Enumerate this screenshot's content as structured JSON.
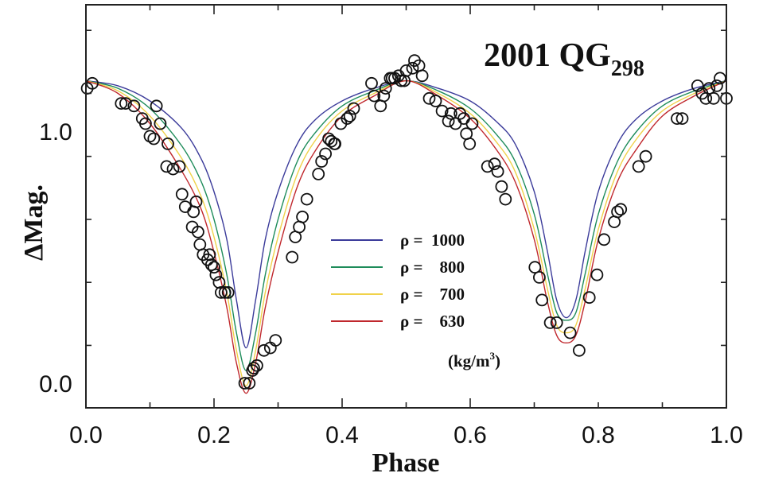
{
  "chart_data": {
    "type": "line",
    "title": "2001 QG",
    "title_subscript": "298",
    "xlabel": "Phase",
    "ylabel": "ΔMag.",
    "xlim": [
      0.0,
      1.0
    ],
    "ylim": [
      -0.1,
      1.5
    ],
    "y_inverted": false,
    "grid": false,
    "x_ticks": [
      {
        "value": 0.0,
        "label": "0.0"
      },
      {
        "value": 0.2,
        "label": "0.2"
      },
      {
        "value": 0.4,
        "label": "0.4"
      },
      {
        "value": 0.6,
        "label": "0.6"
      },
      {
        "value": 0.8,
        "label": "0.8"
      },
      {
        "value": 1.0,
        "label": "1.0"
      }
    ],
    "y_ticks": [
      {
        "value": 0.0,
        "label": "0.0"
      },
      {
        "value": 0.5,
        "label": ""
      },
      {
        "value": 1.0,
        "label": "1.0"
      }
    ],
    "legend": {
      "position": "center",
      "unit": "(kg/m",
      "unit_superscript": "3",
      "unit_close": ")",
      "entries": [
        {
          "label": "ρ =  1000",
          "color": "#3b3b9a"
        },
        {
          "label": "ρ =    800",
          "color": "#1e8c5a"
        },
        {
          "label": "ρ =    700",
          "color": "#f0d24a"
        },
        {
          "label": "ρ =    630",
          "color": "#c0282d"
        }
      ]
    },
    "series": [
      {
        "name": "ρ = 1000",
        "color": "#3b3b9a",
        "x": [
          0.0,
          0.05,
          0.1,
          0.15,
          0.18,
          0.2,
          0.22,
          0.235,
          0.25,
          0.265,
          0.28,
          0.3,
          0.33,
          0.36,
          0.4,
          0.45,
          0.5,
          0.55,
          0.6,
          0.64,
          0.67,
          0.7,
          0.72,
          0.735,
          0.75,
          0.765,
          0.78,
          0.8,
          0.83,
          0.86,
          0.9,
          0.95,
          1.0
        ],
        "y": [
          1.2,
          1.18,
          1.12,
          1.01,
          0.89,
          0.76,
          0.57,
          0.33,
          0.14,
          0.33,
          0.57,
          0.76,
          0.95,
          1.05,
          1.12,
          1.17,
          1.2,
          1.17,
          1.12,
          1.04,
          0.95,
          0.76,
          0.53,
          0.33,
          0.26,
          0.33,
          0.53,
          0.76,
          0.95,
          1.05,
          1.12,
          1.17,
          1.2
        ]
      },
      {
        "name": "ρ = 800",
        "color": "#1e8c5a",
        "x": [
          0.0,
          0.05,
          0.1,
          0.15,
          0.18,
          0.2,
          0.22,
          0.235,
          0.25,
          0.265,
          0.28,
          0.3,
          0.33,
          0.36,
          0.4,
          0.45,
          0.5,
          0.55,
          0.6,
          0.64,
          0.67,
          0.7,
          0.72,
          0.735,
          0.75,
          0.765,
          0.78,
          0.8,
          0.83,
          0.86,
          0.9,
          0.95,
          1.0
        ],
        "y": [
          1.2,
          1.17,
          1.09,
          0.94,
          0.8,
          0.65,
          0.43,
          0.2,
          0.05,
          0.2,
          0.43,
          0.65,
          0.88,
          1.0,
          1.1,
          1.16,
          1.2,
          1.16,
          1.09,
          0.99,
          0.88,
          0.67,
          0.44,
          0.28,
          0.25,
          0.28,
          0.44,
          0.67,
          0.88,
          1.0,
          1.1,
          1.16,
          1.2
        ]
      },
      {
        "name": "ρ = 700",
        "color": "#f0d24a",
        "x": [
          0.0,
          0.05,
          0.1,
          0.15,
          0.18,
          0.2,
          0.22,
          0.235,
          0.25,
          0.265,
          0.28,
          0.3,
          0.33,
          0.36,
          0.4,
          0.45,
          0.5,
          0.55,
          0.6,
          0.64,
          0.67,
          0.7,
          0.72,
          0.735,
          0.75,
          0.765,
          0.78,
          0.8,
          0.83,
          0.86,
          0.9,
          0.95,
          1.0
        ],
        "y": [
          1.2,
          1.16,
          1.06,
          0.89,
          0.74,
          0.58,
          0.36,
          0.13,
          -0.01,
          0.13,
          0.36,
          0.58,
          0.83,
          0.97,
          1.08,
          1.15,
          1.2,
          1.15,
          1.07,
          0.96,
          0.84,
          0.61,
          0.38,
          0.23,
          0.2,
          0.23,
          0.38,
          0.61,
          0.84,
          0.97,
          1.08,
          1.15,
          1.2
        ]
      },
      {
        "name": "ρ = 630",
        "color": "#c0282d",
        "x": [
          0.0,
          0.05,
          0.1,
          0.15,
          0.18,
          0.2,
          0.22,
          0.235,
          0.25,
          0.265,
          0.28,
          0.3,
          0.33,
          0.36,
          0.4,
          0.45,
          0.5,
          0.55,
          0.6,
          0.64,
          0.67,
          0.7,
          0.72,
          0.735,
          0.75,
          0.765,
          0.78,
          0.8,
          0.83,
          0.86,
          0.9,
          0.95,
          1.0
        ],
        "y": [
          1.2,
          1.15,
          1.03,
          0.84,
          0.69,
          0.52,
          0.3,
          0.08,
          -0.04,
          0.08,
          0.3,
          0.52,
          0.78,
          0.93,
          1.06,
          1.14,
          1.2,
          1.14,
          1.05,
          0.93,
          0.8,
          0.57,
          0.33,
          0.19,
          0.16,
          0.19,
          0.33,
          0.57,
          0.8,
          0.93,
          1.06,
          1.14,
          1.2
        ]
      }
    ],
    "observations": {
      "name": "",
      "marker": "open-circle",
      "x": [
        0.002,
        0.01,
        0.055,
        0.062,
        0.075,
        0.088,
        0.093,
        0.1,
        0.106,
        0.11,
        0.116,
        0.126,
        0.128,
        0.136,
        0.146,
        0.15,
        0.155,
        0.166,
        0.168,
        0.172,
        0.175,
        0.178,
        0.183,
        0.19,
        0.193,
        0.196,
        0.2,
        0.203,
        0.208,
        0.211,
        0.217,
        0.222,
        0.248,
        0.255,
        0.26,
        0.262,
        0.267,
        0.278,
        0.288,
        0.296,
        0.322,
        0.327,
        0.333,
        0.338,
        0.345,
        0.363,
        0.368,
        0.374,
        0.379,
        0.383,
        0.388,
        0.389,
        0.398,
        0.408,
        0.412,
        0.418,
        0.446,
        0.45,
        0.46,
        0.465,
        0.468,
        0.475,
        0.478,
        0.482,
        0.488,
        0.492,
        0.497,
        0.5,
        0.51,
        0.513,
        0.52,
        0.525,
        0.536,
        0.546,
        0.556,
        0.566,
        0.57,
        0.577,
        0.584,
        0.59,
        0.594,
        0.599,
        0.603,
        0.627,
        0.638,
        0.643,
        0.649,
        0.655,
        0.701,
        0.708,
        0.712,
        0.725,
        0.735,
        0.756,
        0.77,
        0.786,
        0.798,
        0.809,
        0.825,
        0.83,
        0.835,
        0.863,
        0.874,
        0.923,
        0.931,
        0.955,
        0.962,
        0.968,
        0.973,
        0.98,
        0.985,
        0.99,
        1.0
      ],
      "y": [
        1.17,
        1.19,
        1.11,
        1.11,
        1.1,
        1.05,
        1.03,
        0.98,
        0.97,
        1.1,
        1.03,
        0.86,
        0.95,
        0.85,
        0.86,
        0.75,
        0.7,
        0.62,
        0.68,
        0.72,
        0.6,
        0.55,
        0.51,
        0.49,
        0.51,
        0.47,
        0.46,
        0.43,
        0.4,
        0.36,
        0.36,
        0.36,
        0.0,
        0.0,
        0.05,
        0.06,
        0.07,
        0.13,
        0.14,
        0.17,
        0.5,
        0.58,
        0.62,
        0.66,
        0.73,
        0.83,
        0.88,
        0.91,
        0.97,
        0.96,
        0.95,
        0.95,
        1.03,
        1.05,
        1.06,
        1.09,
        1.19,
        1.14,
        1.1,
        1.14,
        1.17,
        1.21,
        1.21,
        1.21,
        1.22,
        1.2,
        1.2,
        1.24,
        1.25,
        1.28,
        1.26,
        1.22,
        1.13,
        1.12,
        1.08,
        1.04,
        1.07,
        1.03,
        1.07,
        1.05,
        0.99,
        0.95,
        1.03,
        0.86,
        0.87,
        0.84,
        0.78,
        0.73,
        0.46,
        0.42,
        0.33,
        0.24,
        0.24,
        0.2,
        0.13,
        0.34,
        0.43,
        0.57,
        0.64,
        0.68,
        0.69,
        0.86,
        0.9,
        1.05,
        1.05,
        1.18,
        1.15,
        1.13,
        1.17,
        1.13,
        1.18,
        1.21,
        1.13
      ]
    }
  }
}
